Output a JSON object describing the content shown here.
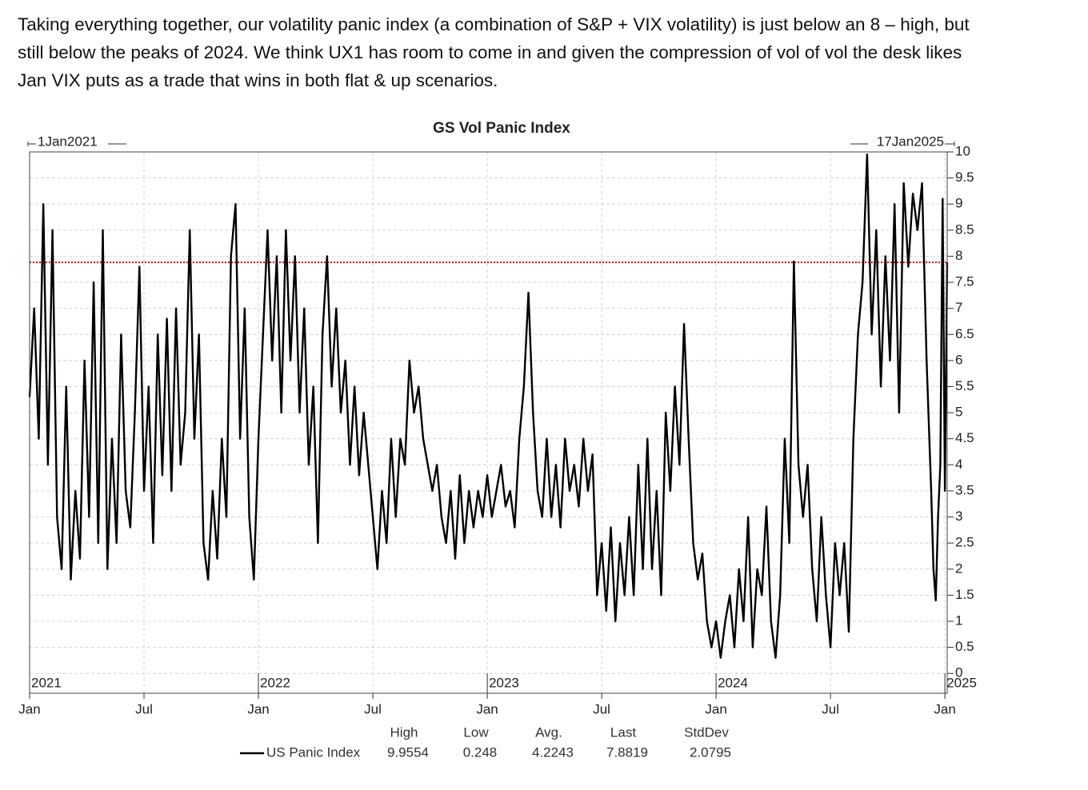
{
  "text_lines": [
    "Taking everything together, our volatility panic index (a combination of S&P + VIX volatility) is just below an 8 – high, but",
    "still below the peaks of 2024. We think UX1 has room to come in and given the compression of vol of vol the desk likes",
    "Jan VIX puts as a trade that wins in both flat & up scenarios."
  ],
  "chart_data": {
    "type": "line",
    "title": "GS Vol Panic Index",
    "range_start": "1Jan2021",
    "range_end": "17Jan2025",
    "x": [
      2021,
      2021.02,
      2021.04,
      2021.06,
      2021.08,
      2021.1,
      2021.12,
      2021.14,
      2021.16,
      2021.18,
      2021.2,
      2021.22,
      2021.24,
      2021.26,
      2021.28,
      2021.3,
      2021.32,
      2021.34,
      2021.36,
      2021.38,
      2021.4,
      2021.42,
      2021.44,
      2021.46,
      2021.48,
      2021.5,
      2021.52,
      2021.54,
      2021.56,
      2021.58,
      2021.6,
      2021.62,
      2021.64,
      2021.66,
      2021.68,
      2021.7,
      2021.72,
      2021.74,
      2021.76,
      2021.78,
      2021.8,
      2021.82,
      2021.84,
      2021.86,
      2021.88,
      2021.9,
      2021.92,
      2021.94,
      2021.96,
      2021.98,
      2022,
      2022.02,
      2022.04,
      2022.06,
      2022.08,
      2022.1,
      2022.12,
      2022.14,
      2022.16,
      2022.18,
      2022.2,
      2022.22,
      2022.24,
      2022.26,
      2022.28,
      2022.3,
      2022.32,
      2022.34,
      2022.36,
      2022.38,
      2022.4,
      2022.42,
      2022.44,
      2022.46,
      2022.48,
      2022.5,
      2022.52,
      2022.54,
      2022.56,
      2022.58,
      2022.6,
      2022.62,
      2022.64,
      2022.66,
      2022.68,
      2022.7,
      2022.72,
      2022.74,
      2022.76,
      2022.78,
      2022.8,
      2022.82,
      2022.84,
      2022.86,
      2022.88,
      2022.9,
      2022.92,
      2022.94,
      2022.96,
      2022.98,
      2023,
      2023.02,
      2023.04,
      2023.06,
      2023.08,
      2023.1,
      2023.12,
      2023.14,
      2023.16,
      2023.18,
      2023.2,
      2023.22,
      2023.24,
      2023.26,
      2023.28,
      2023.3,
      2023.32,
      2023.34,
      2023.36,
      2023.38,
      2023.4,
      2023.42,
      2023.44,
      2023.46,
      2023.48,
      2023.5,
      2023.52,
      2023.54,
      2023.56,
      2023.58,
      2023.6,
      2023.62,
      2023.64,
      2023.66,
      2023.68,
      2023.7,
      2023.72,
      2023.74,
      2023.76,
      2023.78,
      2023.8,
      2023.82,
      2023.84,
      2023.86,
      2023.88,
      2023.9,
      2023.92,
      2023.94,
      2023.96,
      2023.98,
      2024,
      2024.02,
      2024.04,
      2024.06,
      2024.08,
      2024.1,
      2024.12,
      2024.14,
      2024.16,
      2024.18,
      2024.2,
      2024.22,
      2024.24,
      2024.26,
      2024.28,
      2024.3,
      2024.32,
      2024.34,
      2024.36,
      2024.38,
      2024.4,
      2024.42,
      2024.44,
      2024.46,
      2024.48,
      2024.5,
      2024.52,
      2024.54,
      2024.56,
      2024.58,
      2024.6,
      2024.62,
      2024.64,
      2024.66,
      2024.68,
      2024.7,
      2024.72,
      2024.74,
      2024.76,
      2024.78,
      2024.8,
      2024.82,
      2024.84,
      2024.86,
      2024.88,
      2024.9,
      2024.92,
      2024.94,
      2024.95,
      2024.96,
      2024.97,
      2024.98,
      2024.99,
      2025,
      2025.01
    ],
    "series": [
      {
        "name": "US Panic Index",
        "color": "#000000",
        "values": [
          5.3,
          7.0,
          4.5,
          9.0,
          4.0,
          8.5,
          3.0,
          2.0,
          5.5,
          1.8,
          3.5,
          2.2,
          6.0,
          3.0,
          7.5,
          2.5,
          8.5,
          2.0,
          4.5,
          2.5,
          6.5,
          3.5,
          2.8,
          5.0,
          7.8,
          3.5,
          5.5,
          2.5,
          6.5,
          3.8,
          6.8,
          3.5,
          7.0,
          4.0,
          5.0,
          8.5,
          4.5,
          6.5,
          2.5,
          1.8,
          3.5,
          2.2,
          4.5,
          3.0,
          8.0,
          9.0,
          4.5,
          7.0,
          3.0,
          1.8,
          4.5,
          6.5,
          8.5,
          6.0,
          8.0,
          5.0,
          8.5,
          6.0,
          8.0,
          5.0,
          7.0,
          4.0,
          5.5,
          2.5,
          6.5,
          8.0,
          5.5,
          7.0,
          5.0,
          6.0,
          4.0,
          5.5,
          3.8,
          5.0,
          4.0,
          3.0,
          2.0,
          3.5,
          2.5,
          4.5,
          3.0,
          4.5,
          4.0,
          6.0,
          5.0,
          5.5,
          4.5,
          4.0,
          3.5,
          4.0,
          3.0,
          2.5,
          3.5,
          2.2,
          3.8,
          2.5,
          3.5,
          2.8,
          3.5,
          3.0,
          3.8,
          3.0,
          3.5,
          4.0,
          3.2,
          3.5,
          2.8,
          4.5,
          5.5,
          7.3,
          5.0,
          3.5,
          3.0,
          4.5,
          3.0,
          4.0,
          2.8,
          4.5,
          3.5,
          4.0,
          3.2,
          4.5,
          3.5,
          4.2,
          1.5,
          2.5,
          1.2,
          2.8,
          1.0,
          2.5,
          1.5,
          3.0,
          1.5,
          4.0,
          2.0,
          4.5,
          2.0,
          3.5,
          1.5,
          5.0,
          3.5,
          5.5,
          4.0,
          6.7,
          4.5,
          2.5,
          1.8,
          2.3,
          1.0,
          0.5,
          1.0,
          0.3,
          1.0,
          1.5,
          0.5,
          2.0,
          1.0,
          3.0,
          0.5,
          2.0,
          1.5,
          3.2,
          1.0,
          0.3,
          1.5,
          4.5,
          2.5,
          7.9,
          4.0,
          3.0,
          4.0,
          2.0,
          1.0,
          3.0,
          1.5,
          0.5,
          2.5,
          1.5,
          2.5,
          0.8,
          4.5,
          6.5,
          7.5,
          9.95,
          6.5,
          8.5,
          5.5,
          8.0,
          6.0,
          9.0,
          5.0,
          9.4,
          7.8,
          9.2,
          8.5,
          9.4,
          6.0,
          3.5,
          2.0,
          1.4,
          3.0,
          4.0,
          9.1,
          3.5,
          7.88
        ]
      }
    ],
    "reference_line": {
      "value": 7.8819,
      "color": "#e00000"
    },
    "xlim": [
      2021,
      2025.01
    ],
    "xticks": [
      {
        "value": 2021,
        "label": "Jan"
      },
      {
        "value": 2021.5,
        "label": "Jul"
      },
      {
        "value": 2022,
        "label": "Jan"
      },
      {
        "value": 2022.5,
        "label": "Jul"
      },
      {
        "value": 2023,
        "label": "Jan"
      },
      {
        "value": 2023.5,
        "label": "Jul"
      },
      {
        "value": 2024,
        "label": "Jan"
      },
      {
        "value": 2024.5,
        "label": "Jul"
      },
      {
        "value": 2025,
        "label": "Jan"
      }
    ],
    "year_labels": [
      {
        "value": 2021,
        "label": "2021"
      },
      {
        "value": 2022,
        "label": "2022"
      },
      {
        "value": 2023,
        "label": "2023"
      },
      {
        "value": 2024,
        "label": "2024"
      },
      {
        "value": 2025,
        "label": "2025"
      }
    ],
    "ylim": [
      -0.38,
      10
    ],
    "yticks": [
      0,
      0.5,
      1,
      1.5,
      2,
      2.5,
      3,
      3.5,
      4,
      4.5,
      5,
      5.5,
      6,
      6.5,
      7,
      7.5,
      8,
      8.5,
      9,
      9.5,
      10
    ],
    "grid": true,
    "legend_stats": {
      "headers": [
        "High",
        "Low",
        "Avg.",
        "Last",
        "StdDev"
      ],
      "values": [
        9.9554,
        0.248,
        4.2243,
        7.8819,
        2.0795
      ]
    }
  }
}
